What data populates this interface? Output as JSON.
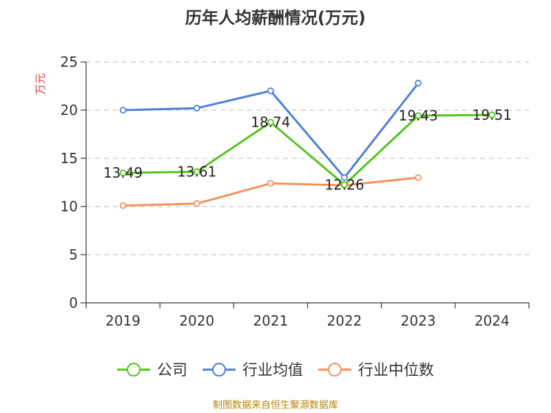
{
  "chart_data": {
    "type": "line",
    "title": "历年人均薪酬情况(万元)",
    "ylabel": "万元",
    "xlabel": "",
    "ylim": [
      0,
      25
    ],
    "yticks": [
      0,
      5,
      10,
      15,
      20,
      25
    ],
    "categories": [
      "2019",
      "2020",
      "2021",
      "2022",
      "2023",
      "2024"
    ],
    "grid": true,
    "legend_position": "bottom",
    "series": [
      {
        "name": "公司",
        "color": "#52c41a",
        "values": [
          13.49,
          13.61,
          18.74,
          12.26,
          19.43,
          19.51
        ],
        "show_labels": true
      },
      {
        "name": "行业均值",
        "color": "#4a7fd6",
        "values": [
          20.0,
          20.2,
          22.0,
          13.0,
          22.8,
          null
        ],
        "show_labels": false
      },
      {
        "name": "行业中位数",
        "color": "#f5905a",
        "values": [
          10.1,
          10.3,
          12.4,
          12.2,
          13.0,
          null
        ],
        "show_labels": false
      }
    ],
    "source": "制图数据来自恒生聚源数据库"
  }
}
